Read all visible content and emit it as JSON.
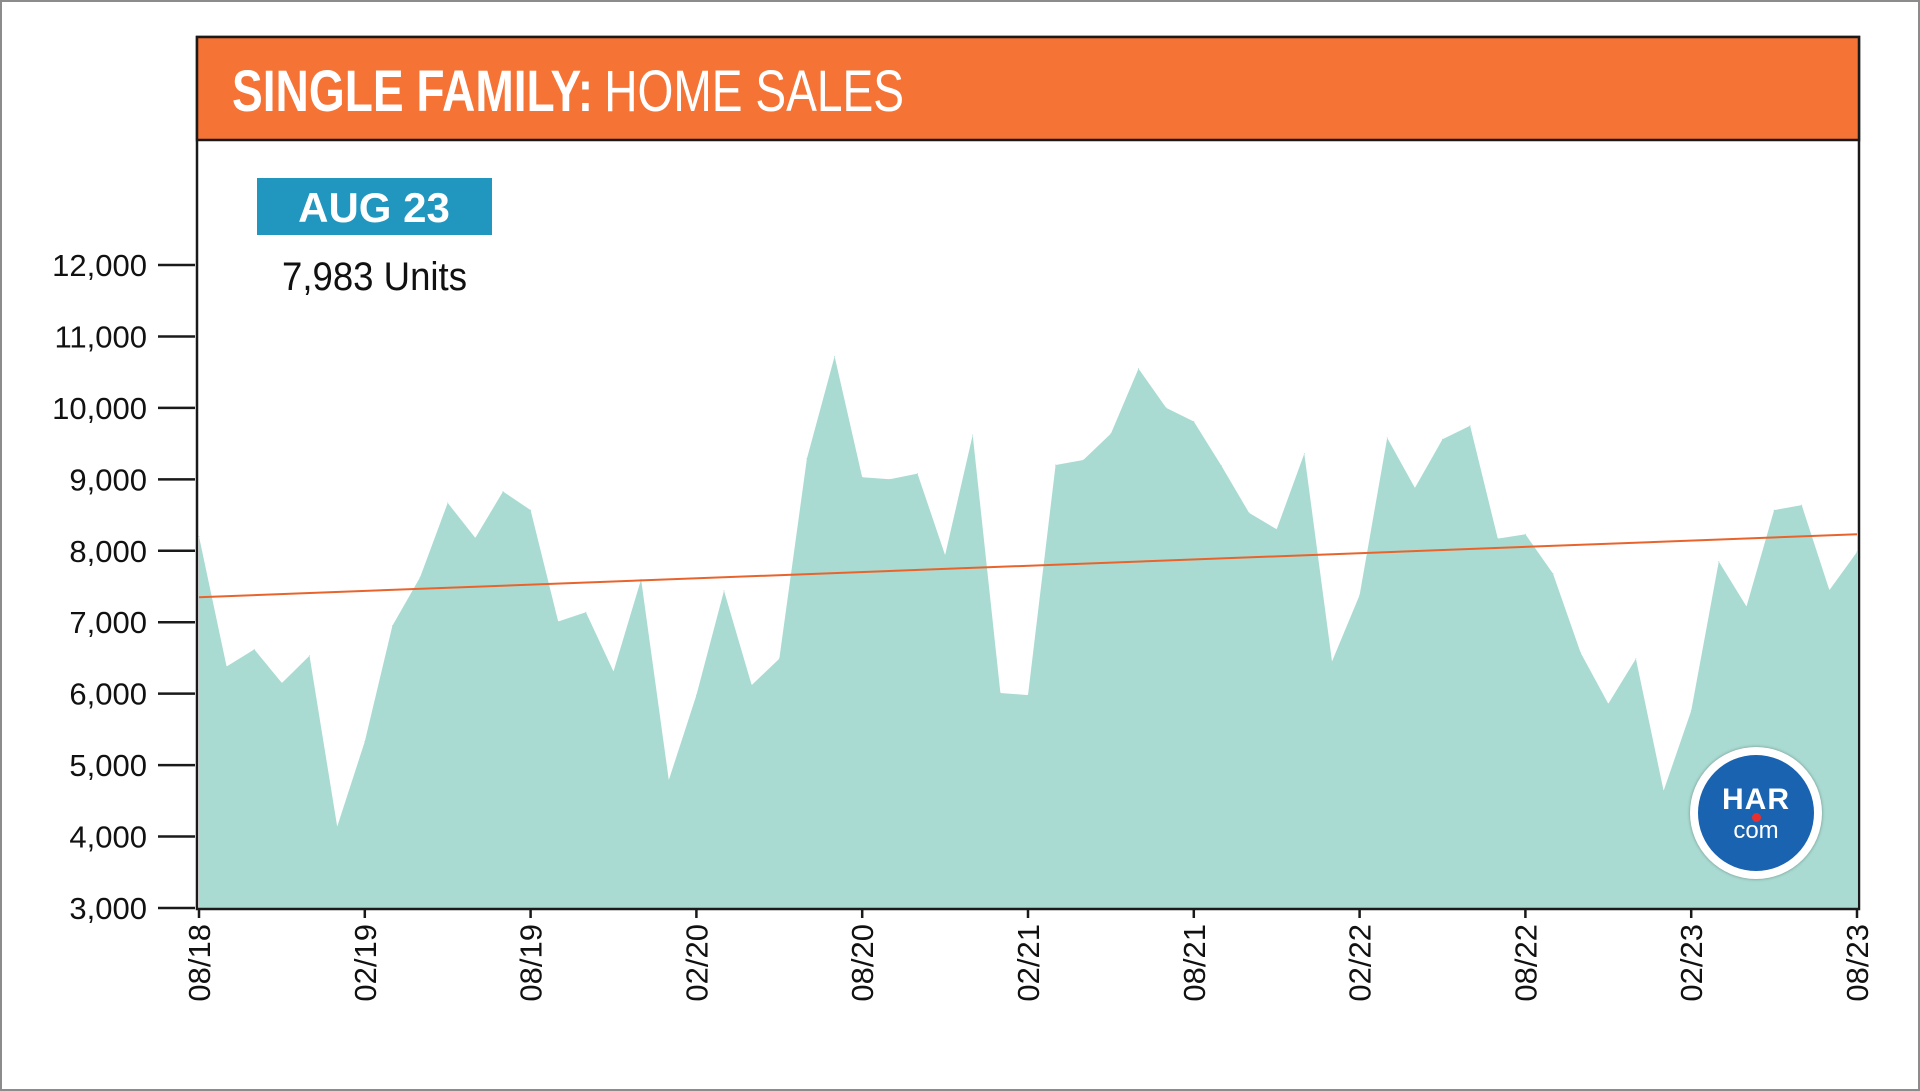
{
  "header": {
    "title_bold": "SINGLE FAMILY:",
    "title_light": "HOME SALES"
  },
  "callout": {
    "badge": "AUG 23",
    "value": "7,983 Units"
  },
  "logo": {
    "top": "HAR",
    "bottom": "com"
  },
  "colors": {
    "header_bg": "#f47335",
    "area_fill": "#a9dbd2",
    "trend_line": "#e8642c",
    "badge_bg": "#2196bf",
    "logo_bg": "#1a63b1"
  },
  "chart_data": {
    "type": "area",
    "ylim": [
      3000,
      12000
    ],
    "yticks": [
      "12,000",
      "11,000",
      "10,000",
      "9,000",
      "8,000",
      "7,000",
      "6,000",
      "5,000",
      "4,000",
      "3,000"
    ],
    "ytick_values": [
      12000,
      11000,
      10000,
      9000,
      8000,
      7000,
      6000,
      5000,
      4000,
      3000
    ],
    "xticks": [
      "08/18",
      "02/19",
      "08/19",
      "02/20",
      "08/20",
      "02/21",
      "08/21",
      "02/22",
      "08/22",
      "02/23",
      "08/23"
    ],
    "series": [
      {
        "values": [
          8200,
          6380,
          6620,
          6150,
          6530,
          4140,
          5330,
          6950,
          7630,
          8670,
          8180,
          8830,
          8570,
          7010,
          7140,
          6310,
          7600,
          4790,
          5980,
          7440,
          6120,
          6490,
          9290,
          10720,
          9030,
          9000,
          9080,
          7940,
          9620,
          6010,
          5980,
          9200,
          9270,
          9640,
          10550,
          10000,
          9810,
          9190,
          8530,
          8300,
          9360,
          6450,
          7380,
          9580,
          8880,
          9560,
          9750,
          8170,
          8230,
          7680,
          6570,
          5860,
          6490,
          4640,
          5760,
          7850,
          7220,
          8570,
          8640,
          7450,
          7983
        ]
      }
    ],
    "trend": [
      7350,
      8230
    ]
  }
}
